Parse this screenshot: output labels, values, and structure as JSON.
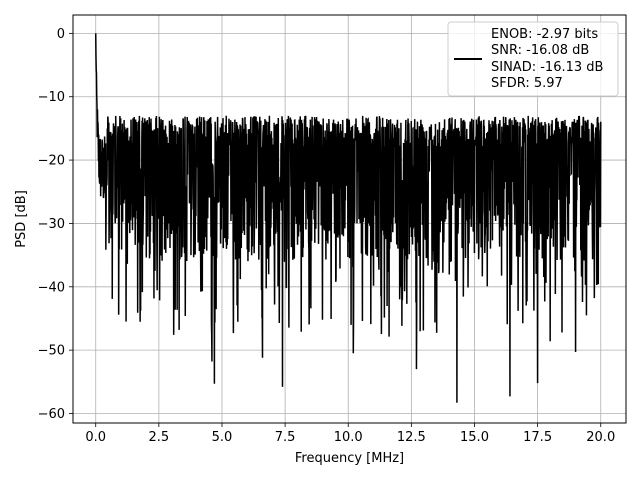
{
  "chart_data": {
    "type": "line",
    "xlabel": "Frequency [MHz]",
    "ylabel": "PSD [dB]",
    "xlim": [
      -0.9,
      21.0
    ],
    "ylim": [
      -61.5,
      2.9
    ],
    "xticks": [
      0.0,
      2.5,
      5.0,
      7.5,
      10.0,
      12.5,
      15.0,
      17.5,
      20.0
    ],
    "xtick_labels": [
      "0.0",
      "2.5",
      "5.0",
      "7.5",
      "10.0",
      "12.5",
      "15.0",
      "17.5",
      "20.0"
    ],
    "yticks": [
      0,
      -10,
      -20,
      -30,
      -40,
      -50,
      -60
    ],
    "ytick_labels": [
      "0",
      "−10",
      "−20",
      "−30",
      "−40",
      "−50",
      "−60"
    ],
    "grid": true,
    "legend_position": "upper right",
    "legend_lines": [
      "ENOB: -2.97 bits",
      "SNR: -16.08 dB",
      "SINAD: -16.13 dB",
      "SFDR: 5.97"
    ],
    "series_color": "#000000",
    "x_range": [
      0.0,
      20.0
    ],
    "series_points": 2048,
    "peak": {
      "x": 0.0,
      "y": 0.0
    },
    "noise_floor_band": [
      -13,
      -36
    ],
    "deep_notches": [
      {
        "x": 4.7,
        "y": -55.3
      },
      {
        "x": 7.4,
        "y": -55.8
      },
      {
        "x": 14.3,
        "y": -58.3
      },
      {
        "x": 16.4,
        "y": -57.3
      },
      {
        "x": 17.5,
        "y": -55.2
      },
      {
        "x": 4.6,
        "y": -51.8
      },
      {
        "x": 6.6,
        "y": -51.2
      },
      {
        "x": 10.2,
        "y": -50.5
      },
      {
        "x": 12.7,
        "y": -53.0
      },
      {
        "x": 19.0,
        "y": -50.3
      },
      {
        "x": 18.0,
        "y": -48.6
      },
      {
        "x": 1.2,
        "y": -45.5
      },
      {
        "x": 3.3,
        "y": -46.8
      }
    ]
  }
}
